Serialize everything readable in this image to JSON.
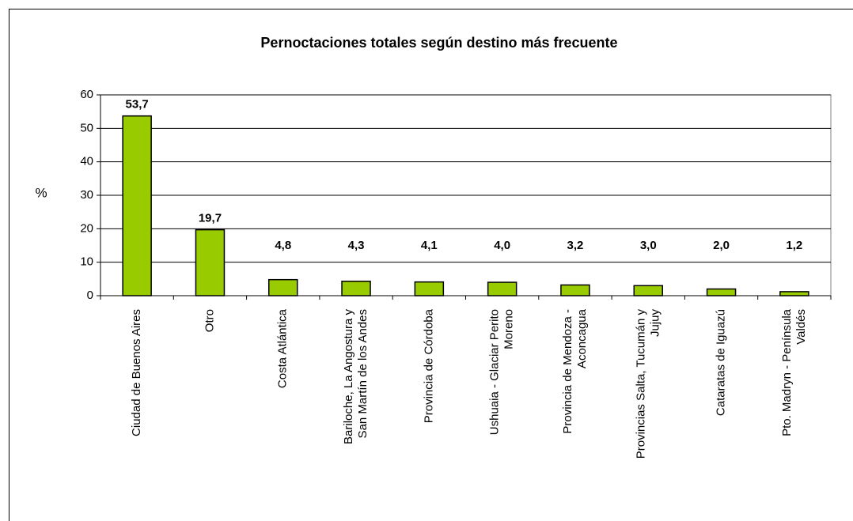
{
  "chart_data": {
    "type": "bar",
    "title": "Pernoctaciones totales según destino más frecuente",
    "y_label": "%",
    "categories": [
      "Ciudad de Buenos Aires",
      "Otro",
      "Costa Atlántica",
      "Bariloche, La Angostura y San Martín de los Andes",
      "Provincia de Córdoba",
      "Ushuaia - Glaciar Perito Moreno",
      "Provincia de Mendoza - Aconcagua",
      "Provincias Salta, Tucumán y Jujuy",
      "Cataratas de Iguazú",
      "Pto. Madryn - Península Valdés"
    ],
    "values": [
      53.7,
      19.7,
      4.8,
      4.3,
      4.1,
      4.0,
      3.2,
      3.0,
      2.0,
      1.2
    ],
    "value_labels": [
      "53,7",
      "19,7",
      "4,8",
      "4,3",
      "4,1",
      "4,0",
      "3,2",
      "3,0",
      "2,0",
      "1,2"
    ],
    "color": "#99cc00",
    "ylim": [
      0,
      60
    ],
    "yticks": [
      0,
      10,
      20,
      30,
      40,
      50,
      60
    ],
    "grid": true
  }
}
